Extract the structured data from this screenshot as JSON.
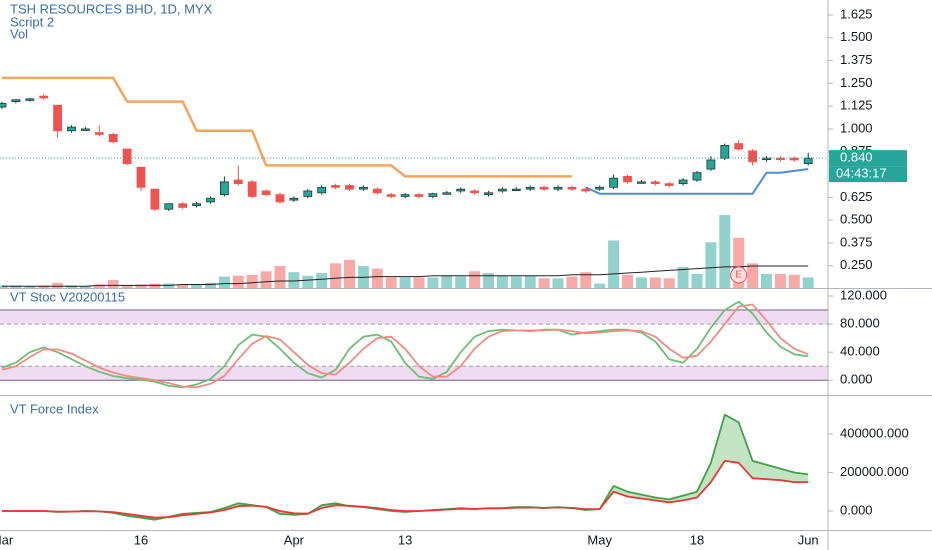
{
  "chart_data": [
    {
      "type": "candlestick",
      "title": "TSH RESOURCES BHD, 1D, MYX",
      "subtitles": [
        "Script 2",
        "Vol"
      ],
      "categories": [
        "Mar",
        null,
        null,
        null,
        null,
        null,
        null,
        null,
        null,
        null,
        "16",
        null,
        null,
        null,
        null,
        null,
        null,
        null,
        null,
        null,
        null,
        "Apr",
        null,
        null,
        null,
        null,
        null,
        null,
        null,
        "13",
        null,
        null,
        null,
        null,
        null,
        null,
        null,
        null,
        null,
        null,
        null,
        null,
        null,
        "May",
        null,
        null,
        null,
        null,
        null,
        null,
        "18",
        null,
        null,
        null,
        null,
        null,
        null,
        null,
        "Jun"
      ],
      "open": [
        1.12,
        1.15,
        1.16,
        1.18,
        1.13,
        0.99,
        1.0,
        0.98,
        0.97,
        0.89,
        0.79,
        0.67,
        0.56,
        0.59,
        0.58,
        0.6,
        0.64,
        0.72,
        0.71,
        0.66,
        0.64,
        0.61,
        0.63,
        0.65,
        0.69,
        0.69,
        0.67,
        0.67,
        0.64,
        0.63,
        0.64,
        0.63,
        0.65,
        0.66,
        0.66,
        0.64,
        0.66,
        0.67,
        0.67,
        0.68,
        0.67,
        0.68,
        0.67,
        0.67,
        0.68,
        0.74,
        0.71,
        0.71,
        0.7,
        0.7,
        0.72,
        0.78,
        0.84,
        0.92,
        0.88,
        0.84,
        0.84,
        0.84,
        0.81
      ],
      "high": [
        1.15,
        1.16,
        1.17,
        1.19,
        1.13,
        1.02,
        1.01,
        1.02,
        0.98,
        0.89,
        0.79,
        0.67,
        0.59,
        0.6,
        0.6,
        0.63,
        0.74,
        0.8,
        0.72,
        0.67,
        0.65,
        0.63,
        0.67,
        0.69,
        0.7,
        0.7,
        0.69,
        0.68,
        0.65,
        0.65,
        0.65,
        0.65,
        0.66,
        0.68,
        0.67,
        0.66,
        0.68,
        0.68,
        0.69,
        0.69,
        0.69,
        0.69,
        0.68,
        0.69,
        0.75,
        0.75,
        0.72,
        0.72,
        0.71,
        0.73,
        0.77,
        0.85,
        0.92,
        0.94,
        0.89,
        0.85,
        0.85,
        0.85,
        0.87
      ],
      "low": [
        1.11,
        1.14,
        1.15,
        1.16,
        0.95,
        0.98,
        0.99,
        0.96,
        0.92,
        0.8,
        0.66,
        0.55,
        0.55,
        0.56,
        0.57,
        0.59,
        0.63,
        0.69,
        0.62,
        0.63,
        0.59,
        0.6,
        0.62,
        0.64,
        0.67,
        0.66,
        0.66,
        0.64,
        0.62,
        0.62,
        0.62,
        0.62,
        0.64,
        0.65,
        0.64,
        0.63,
        0.65,
        0.66,
        0.66,
        0.66,
        0.66,
        0.66,
        0.65,
        0.66,
        0.67,
        0.7,
        0.7,
        0.69,
        0.68,
        0.69,
        0.71,
        0.77,
        0.83,
        0.88,
        0.8,
        0.82,
        0.82,
        0.82,
        0.8
      ],
      "close": [
        1.14,
        1.16,
        1.165,
        1.17,
        0.99,
        1.01,
        1.0,
        0.97,
        0.93,
        0.81,
        0.68,
        0.56,
        0.59,
        0.57,
        0.59,
        0.62,
        0.71,
        0.7,
        0.63,
        0.64,
        0.6,
        0.62,
        0.66,
        0.68,
        0.68,
        0.67,
        0.68,
        0.65,
        0.63,
        0.64,
        0.63,
        0.645,
        0.65,
        0.67,
        0.65,
        0.65,
        0.67,
        0.67,
        0.68,
        0.67,
        0.68,
        0.67,
        0.66,
        0.68,
        0.73,
        0.71,
        0.71,
        0.7,
        0.69,
        0.72,
        0.76,
        0.83,
        0.91,
        0.89,
        0.82,
        0.84,
        0.835,
        0.83,
        0.84
      ],
      "up_color": "#26a69a",
      "down_color": "#ef5350",
      "ylim": [
        0.128,
        1.707
      ],
      "yticks": [
        1.625,
        {
          "value": 1.5,
          "label": "1.500"
        },
        1.375,
        {
          "value": 1.25,
          "label": "1.250"
        },
        1.125,
        {
          "value": 1.0,
          "label": "1.000"
        },
        0.875,
        0.625,
        {
          "value": 0.5,
          "label": "0.500"
        },
        0.375,
        {
          "value": 0.25,
          "label": "0.250"
        }
      ],
      "lines": [
        {
          "color": "#f7a35c",
          "values": [
            1.28,
            1.28,
            1.28,
            1.28,
            1.28,
            1.28,
            1.28,
            1.28,
            1.28,
            1.15,
            1.15,
            1.15,
            1.15,
            1.15,
            0.99,
            0.99,
            0.99,
            0.99,
            0.99,
            0.8,
            0.8,
            0.8,
            0.8,
            0.8,
            0.8,
            0.8,
            0.8,
            0.8,
            0.8,
            0.74,
            0.74,
            0.74,
            0.74,
            0.74,
            0.74,
            0.74,
            0.74,
            0.74,
            0.74,
            0.74,
            0.74,
            0.74,
            null,
            null,
            null,
            null,
            null,
            null,
            null,
            null,
            null,
            null,
            null,
            null,
            null,
            null,
            null,
            null,
            null
          ]
        },
        {
          "color": "#4a8fd8",
          "values": [
            null,
            null,
            null,
            null,
            null,
            null,
            null,
            null,
            null,
            null,
            null,
            null,
            null,
            null,
            null,
            null,
            null,
            null,
            null,
            null,
            null,
            null,
            null,
            null,
            null,
            null,
            null,
            null,
            null,
            null,
            null,
            null,
            null,
            null,
            null,
            null,
            null,
            null,
            null,
            null,
            null,
            null,
            0.68,
            0.645,
            0.645,
            0.645,
            0.645,
            0.645,
            0.645,
            0.645,
            0.645,
            0.645,
            0.645,
            0.645,
            0.645,
            0.76,
            0.76,
            0.77,
            0.78
          ]
        }
      ],
      "volume": {
        "ylim": [
          0,
          100
        ],
        "values": [
          3,
          3,
          2,
          3,
          6,
          3,
          2,
          4,
          9,
          3,
          4,
          5,
          5,
          4,
          4,
          6,
          13,
          14,
          15,
          19,
          25,
          18,
          14,
          17,
          28,
          32,
          25,
          22,
          12,
          12,
          12,
          12,
          14,
          13,
          19,
          17,
          14,
          13,
          14,
          11,
          11,
          13,
          18,
          5,
          54,
          15,
          12,
          12,
          11,
          24,
          16,
          52,
          83,
          57,
          28,
          16,
          16,
          15,
          12
        ],
        "ma": [
          2,
          2,
          2,
          2,
          2,
          2,
          2,
          3,
          3,
          3,
          3,
          3,
          3,
          4,
          4,
          4,
          5,
          5,
          6,
          7,
          8,
          8,
          9,
          10,
          11,
          12,
          12,
          13,
          13,
          13,
          13,
          14,
          14,
          14,
          14,
          14,
          14,
          14,
          14,
          14,
          14,
          15,
          15,
          15,
          16,
          17,
          18,
          19,
          20,
          21,
          22,
          23,
          24,
          24,
          25,
          25,
          25,
          25,
          25
        ],
        "ma_color": "#222222"
      },
      "last_price": {
        "value": 0.84,
        "label": "0.840"
      },
      "countdown": "04:43:17",
      "events": [
        {
          "label": "E",
          "category_index": 53
        }
      ]
    },
    {
      "type": "line",
      "title": "VT Stoc V20200115",
      "ylim": [
        -21,
        130
      ],
      "yticks": [
        {
          "value": 0,
          "label": "0.000"
        },
        {
          "value": 40,
          "label": "40.000"
        },
        {
          "value": 80,
          "label": "80.000"
        },
        {
          "value": 120,
          "label": "120.000"
        }
      ],
      "bands": [
        [
          80,
          100
        ],
        [
          0,
          20
        ]
      ],
      "series": [
        {
          "color": "#6fbf73",
          "values": [
            18,
            25,
            40,
            47,
            40,
            30,
            20,
            12,
            6,
            3,
            1,
            -2,
            -8,
            -10,
            -6,
            2,
            20,
            50,
            65,
            62,
            45,
            25,
            10,
            4,
            15,
            45,
            62,
            65,
            55,
            25,
            5,
            2,
            12,
            40,
            62,
            70,
            72,
            71,
            70,
            72,
            72,
            65,
            68,
            70,
            72,
            72,
            68,
            55,
            30,
            25,
            45,
            75,
            100,
            112,
            95,
            68,
            48,
            37,
            34
          ]
        },
        {
          "color": "#f28b82",
          "values": [
            15,
            20,
            33,
            44,
            44,
            38,
            28,
            18,
            11,
            6,
            3,
            0,
            -4,
            -9,
            -10,
            -5,
            6,
            30,
            52,
            63,
            58,
            40,
            22,
            10,
            8,
            25,
            45,
            60,
            62,
            45,
            20,
            5,
            5,
            20,
            45,
            62,
            70,
            71,
            71,
            71,
            72,
            70,
            67,
            68,
            70,
            71,
            70,
            62,
            45,
            32,
            35,
            55,
            80,
            105,
            108,
            85,
            60,
            45,
            37
          ]
        }
      ]
    },
    {
      "type": "line",
      "title": "VT Force Index",
      "ylim": [
        -98700,
        597000
      ],
      "yticks": [
        {
          "value": 0,
          "label": "0.000"
        },
        {
          "value": 200000,
          "label": "200000.000"
        },
        {
          "value": 400000,
          "label": "400000.000"
        }
      ],
      "fill": true,
      "series": [
        {
          "color": "#43a047",
          "values": [
            0,
            0,
            0,
            0,
            -5000,
            -3000,
            0,
            -2000,
            -10000,
            -25000,
            -35000,
            -45000,
            -30000,
            -15000,
            -10000,
            -5000,
            15000,
            40000,
            30000,
            20000,
            -15000,
            -20000,
            -15000,
            30000,
            40000,
            25000,
            20000,
            10000,
            0,
            -5000,
            0,
            5000,
            10000,
            15000,
            10000,
            15000,
            15000,
            20000,
            20000,
            15000,
            20000,
            15000,
            5000,
            10000,
            130000,
            100000,
            85000,
            70000,
            60000,
            80000,
            100000,
            250000,
            500000,
            460000,
            260000,
            240000,
            220000,
            200000,
            190000
          ]
        },
        {
          "color": "#e53935",
          "values": [
            0,
            0,
            0,
            0,
            -3000,
            -3000,
            -1000,
            -2000,
            -6000,
            -15000,
            -25000,
            -35000,
            -32000,
            -22000,
            -15000,
            -8000,
            5000,
            25000,
            28000,
            22000,
            0,
            -12000,
            -14000,
            15000,
            30000,
            27000,
            22000,
            15000,
            5000,
            0,
            0,
            3000,
            7000,
            12000,
            11000,
            13000,
            14000,
            17000,
            18000,
            16000,
            18000,
            16000,
            10000,
            10000,
            100000,
            75000,
            65000,
            55000,
            45000,
            55000,
            70000,
            150000,
            260000,
            250000,
            170000,
            165000,
            160000,
            150000,
            150000
          ]
        }
      ]
    }
  ]
}
